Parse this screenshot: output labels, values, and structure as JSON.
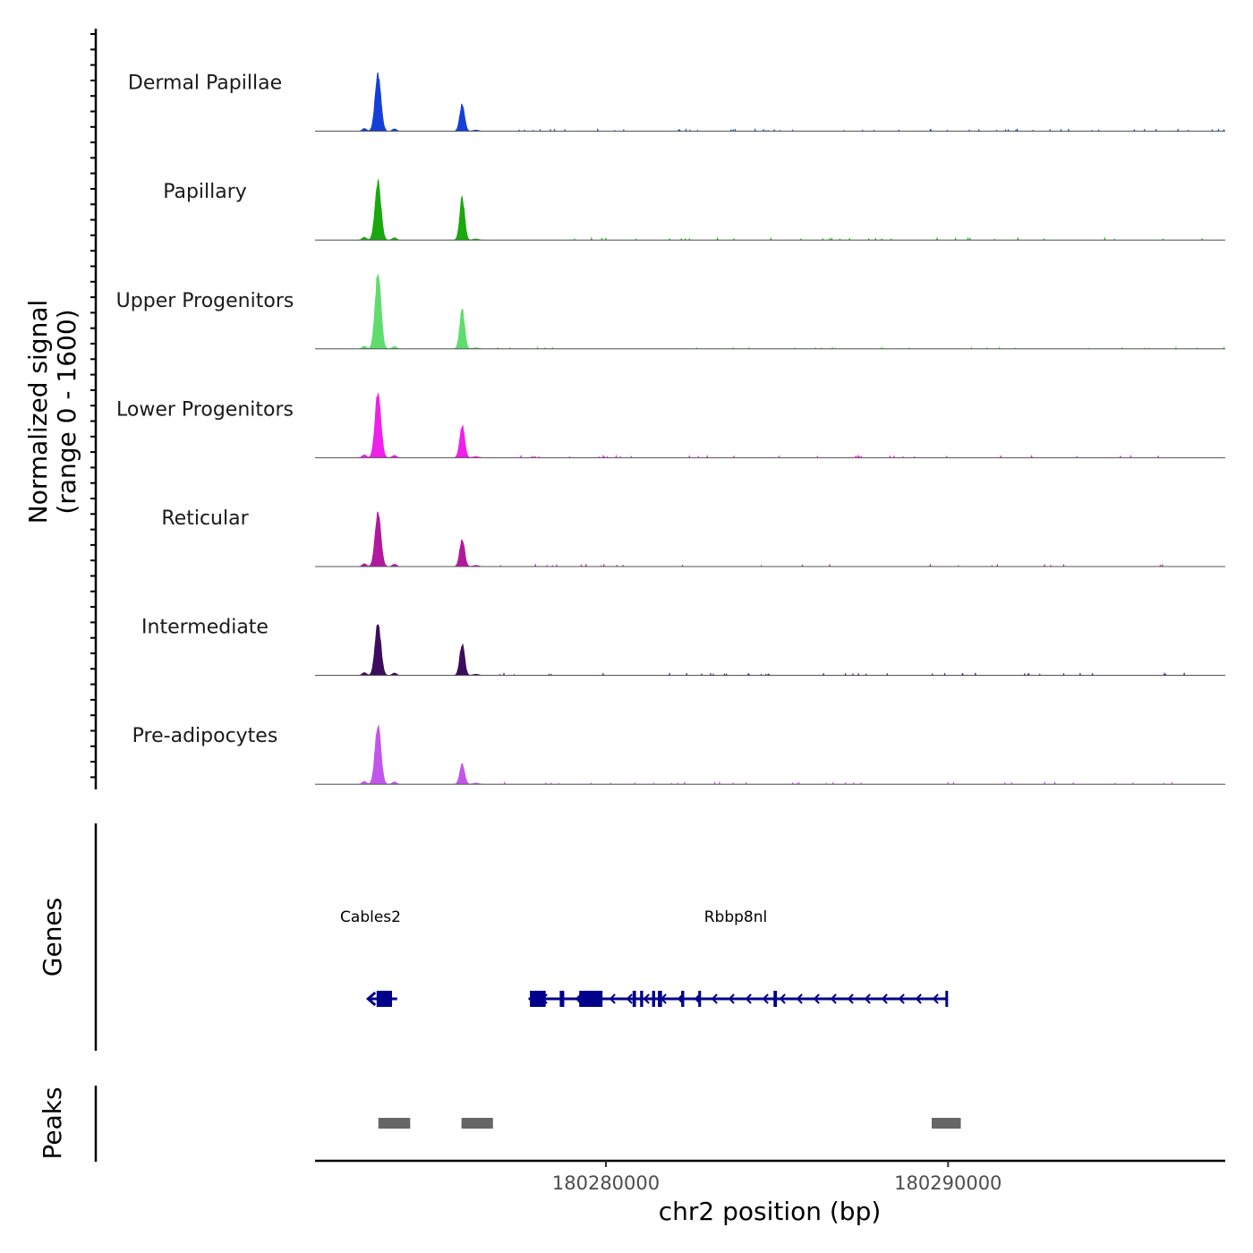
{
  "chart_data": {
    "type": "area",
    "subtype": "genome-coverage-tracks",
    "y_axis_title": [
      "Normalized signal",
      "(range 0 - 1600)"
    ],
    "y_range": [
      0,
      1600
    ],
    "x_axis_title": "chr2 position (bp)",
    "x_range": [
      180271500,
      180298100
    ],
    "x_ticks": [
      {
        "value": 180280000,
        "label": "180280000"
      },
      {
        "value": 180290000,
        "label": "180290000"
      }
    ],
    "tracks": [
      {
        "name": "Dermal Papillae",
        "color": "#1440d8",
        "peak1": 1290,
        "peak2": 600
      },
      {
        "name": "Papillary",
        "color": "#1aa80f",
        "peak1": 1330,
        "peak2": 950
      },
      {
        "name": "Upper Progenitors",
        "color": "#5fdc6e",
        "peak1": 1700,
        "peak2": 890
      },
      {
        "name": "Lower Progenitors",
        "color": "#ee20ea",
        "peak1": 1460,
        "peak2": 720
      },
      {
        "name": "Reticular",
        "color": "#b2189e",
        "peak1": 1200,
        "peak2": 620
      },
      {
        "name": "Intermediate",
        "color": "#3c0d5e",
        "peak1": 1160,
        "peak2": 700
      },
      {
        "name": "Pre-adipocytes",
        "color": "#c355ec",
        "peak1": 1330,
        "peak2": 450
      }
    ],
    "genes_track_title": "Genes",
    "genes": [
      {
        "name": "Cables2",
        "strand": "-",
        "color": "#00008b",
        "start": 180273050,
        "end": 180273900,
        "exons": [
          [
            180273300,
            180273750
          ]
        ]
      },
      {
        "name": "Rbbp8nl",
        "strand": "-",
        "color": "#00008b",
        "start": 180277780,
        "end": 180289980,
        "exons": [
          [
            180277780,
            180278240
          ],
          [
            180278650,
            180278780
          ],
          [
            180279220,
            180279900
          ],
          [
            180280780,
            180280880
          ],
          [
            180281000,
            180281090
          ],
          [
            180281350,
            180281440
          ],
          [
            180281520,
            180281640
          ],
          [
            180282200,
            180282290
          ],
          [
            180282700,
            180282780
          ],
          [
            180284900,
            180285000
          ],
          [
            180289920,
            180289980
          ]
        ]
      }
    ],
    "peaks_track_title": "Peaks",
    "peaks": [
      {
        "start": 180273350,
        "end": 180274280
      },
      {
        "start": 180275780,
        "end": 180276700
      },
      {
        "start": 180289520,
        "end": 180290370
      }
    ]
  }
}
